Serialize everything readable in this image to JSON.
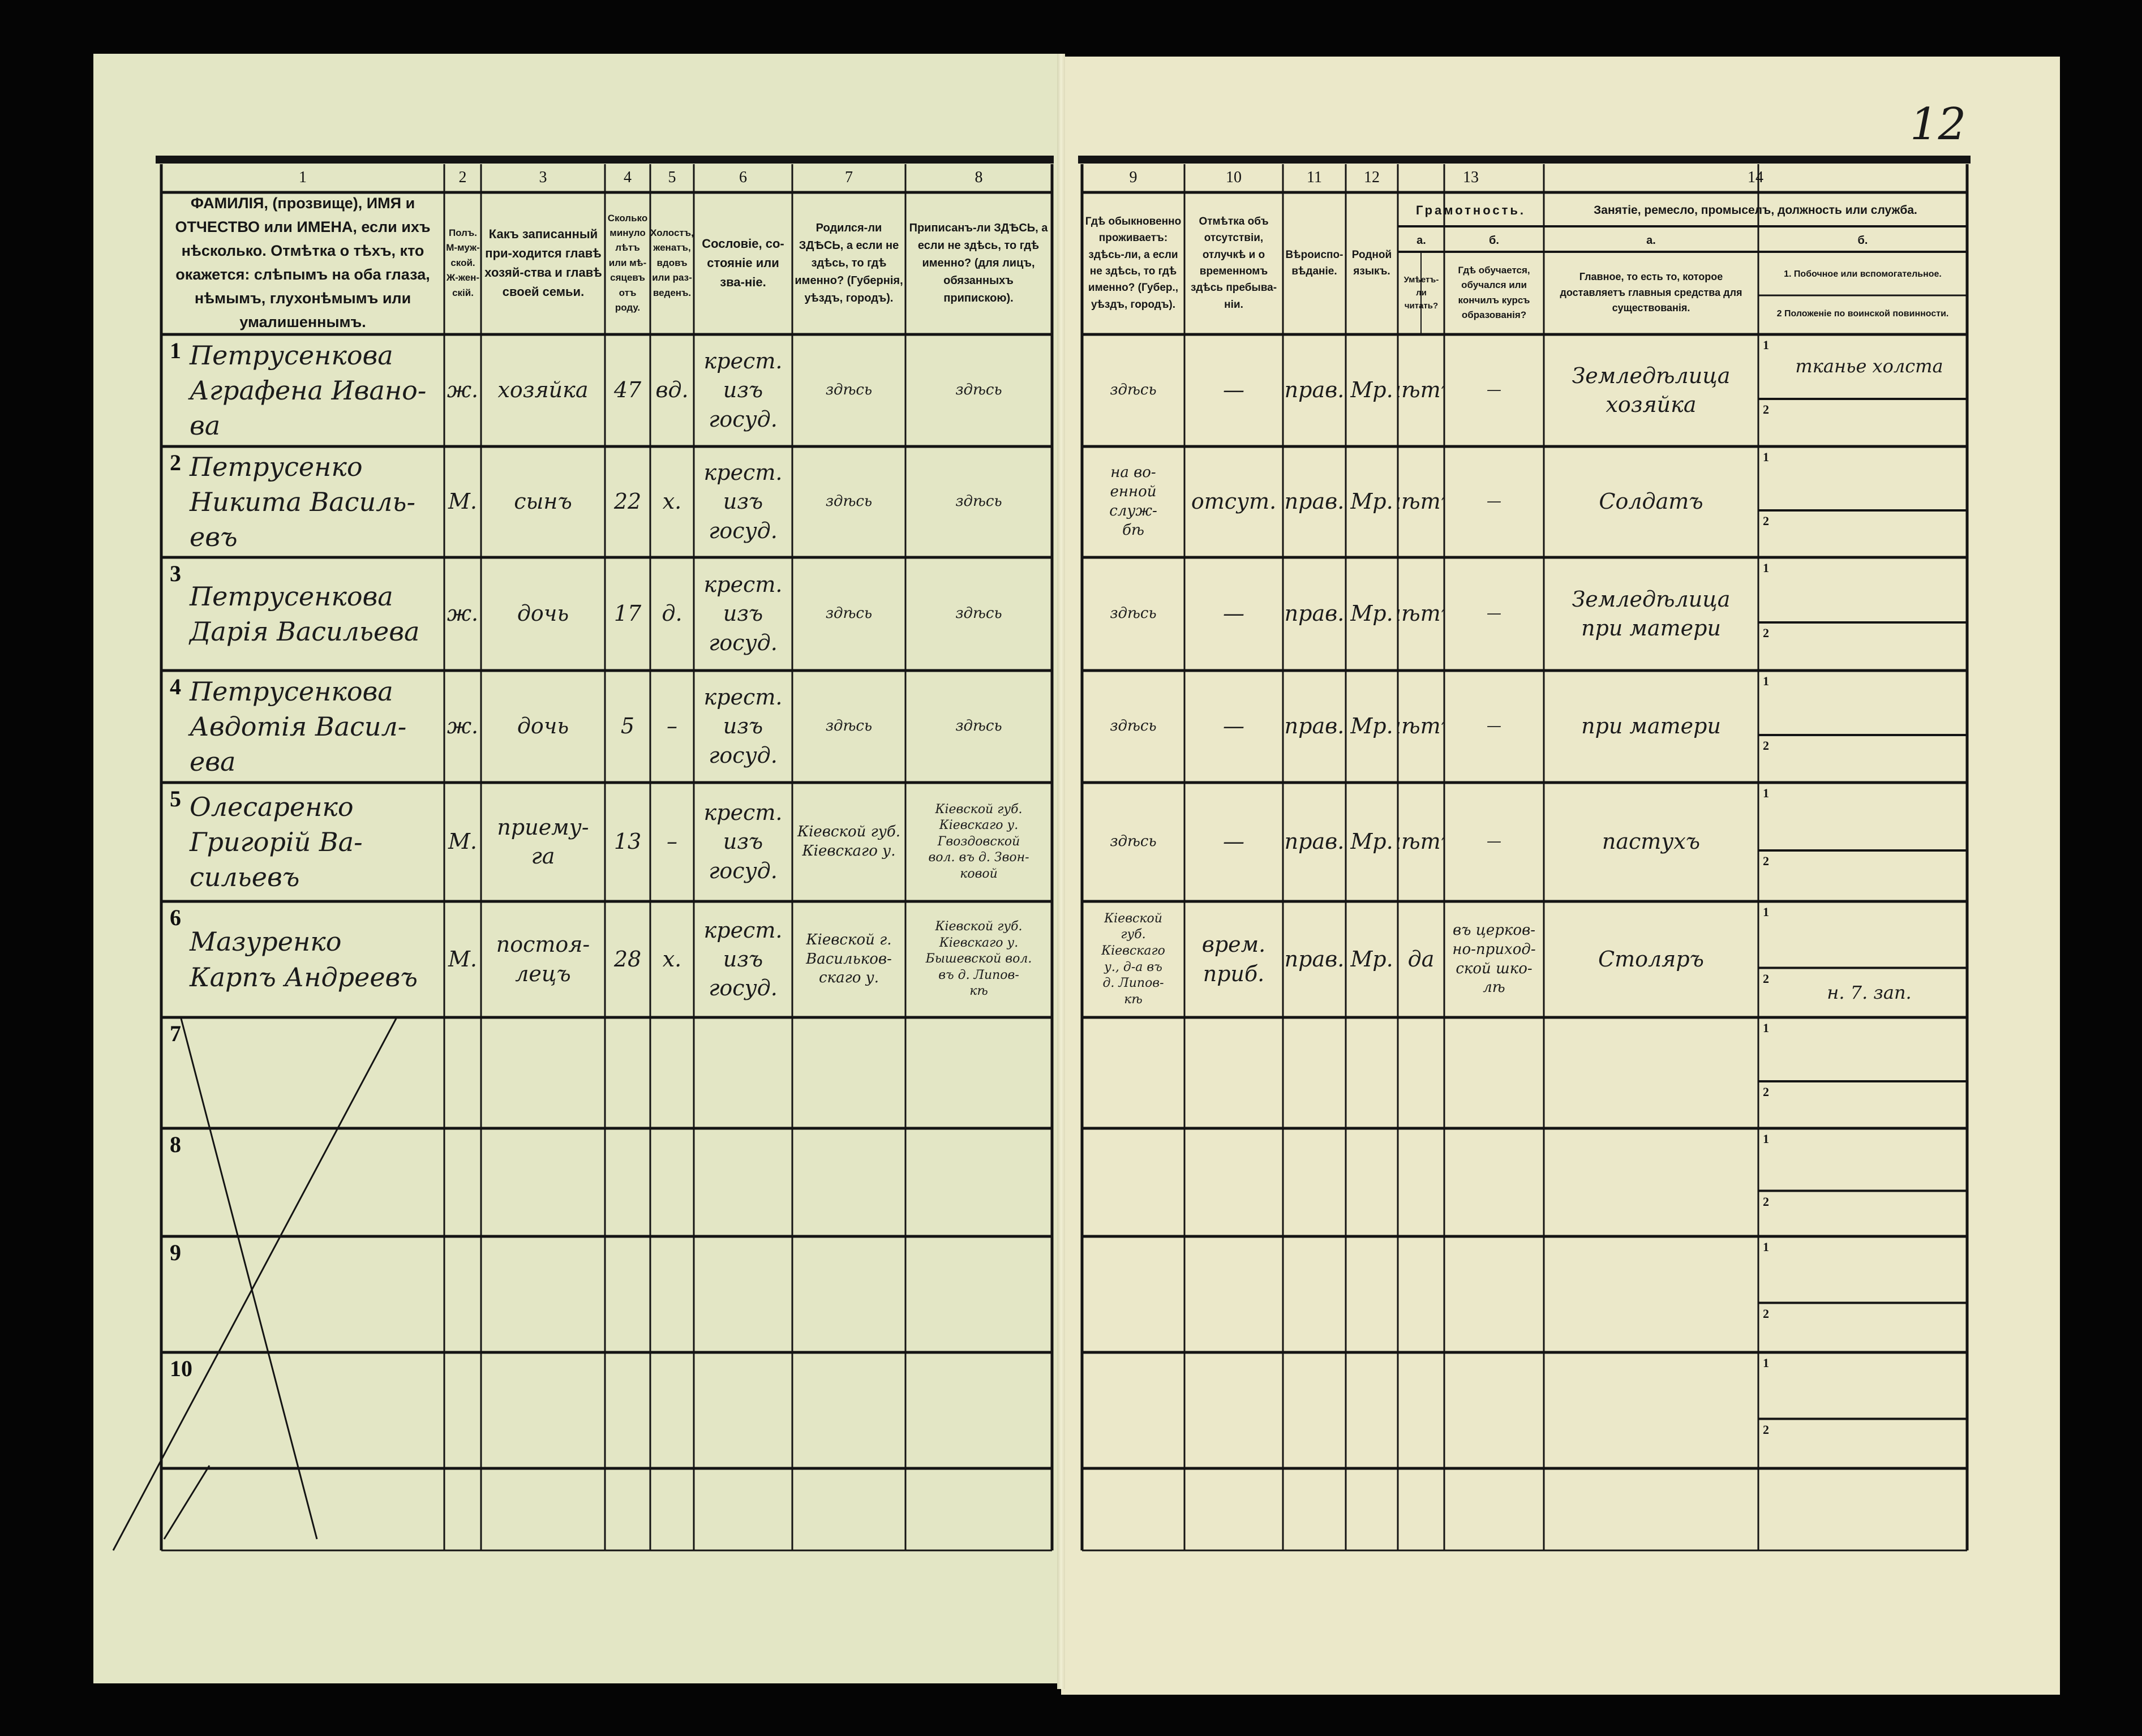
{
  "page_number": "12",
  "colors": {
    "paper_left": "#e3e6c5",
    "paper_right": "#ebe8c9",
    "ink": "#1b1b1b",
    "background": "#050505"
  },
  "header": {
    "col_numbers": [
      "1",
      "2",
      "3",
      "4",
      "5",
      "6",
      "7",
      "8",
      "9",
      "10",
      "11",
      "12",
      "13",
      "14"
    ],
    "c1": "ФАМИЛІЯ, (прозвище), ИМЯ и ОТЧЕСТВО или ИМЕНА, если ихъ нѣсколько. Отмѣтка о тѣхъ, кто окажется: слѣпымъ на оба глаза, нѣмымъ, глухонѣмымъ или умалишеннымъ.",
    "c2": "Полъ. М-муж-ской. Ж-жен-скій.",
    "c3": "Какъ записанный при-ходится главѣ хозяй-ства и главѣ своей семьи.",
    "c4": "Сколько минуло лѣтъ или мѣ-сяцевъ отъ роду.",
    "c5": "Холостъ, женатъ, вдовъ или раз-веденъ.",
    "c6": "Сословіе, со-стояніе или зва-ніе.",
    "c7": "Родился-ли ЗДѢСЬ, а если не здѣсь, то гдѣ именно? (Губернія, уѣздъ, городъ).",
    "c8": "Приписанъ-ли ЗДѢСЬ, а если не здѣсь, то гдѣ именно? (для лицъ, обязанныхъ припискою).",
    "c9": "Гдѣ обыкновенно проживаетъ: здѣсь-ли, а если не здѣсь, то гдѣ именно? (Губер., уѣздъ, городъ).",
    "c10": "Отмѣтка объ отсутствіи, отлучкѣ и о временномъ здѣсь пребыва-ніи.",
    "c11": "Вѣроиспо-вѣданіе.",
    "c12": "Родной языкъ.",
    "c13": "Грамотность.",
    "c13a_letter": "а.",
    "c13a": "Умѣетъ-ли читать?",
    "c13b_letter": "б.",
    "c13b": "Гдѣ обучается, обучался или кончилъ курсъ образованія?",
    "c14": "Занятіе, ремесло, промыселъ, должность или служба.",
    "c14a_letter": "а.",
    "c14a": "Главное, то есть то, которое доставляетъ главныя средства для существованія.",
    "c14b_letter": "б.",
    "c14b1": "1. Побочное или вспомогательное.",
    "c14b2": "2 Положеніе по воинской повинности."
  },
  "sub_labels": [
    "1",
    "2"
  ],
  "rows": [
    {
      "n": "1",
      "name": "Петрусенкова\nАграфена Ивано-\nва",
      "sex": "ж.",
      "relation": "хозяйка",
      "age": "47",
      "marital": "вд.",
      "estate": "крест.\nизъ\nгосуд.",
      "born": "здѣсь",
      "registered": "здѣсь",
      "residence": "здѣсь",
      "absence": "—",
      "religion": "прав.",
      "language": "Мр.",
      "literate": "нѣтъ",
      "school": "—",
      "occupation": "Земледѣлица\nхозяйка",
      "occupation_side": "тканье холста",
      "military": ""
    },
    {
      "n": "2",
      "name": "Петрусенко\nНикита Василь-\nевъ",
      "sex": "М.",
      "relation": "сынъ",
      "age": "22",
      "marital": "х.",
      "estate": "крест.\nизъ\nгосуд.",
      "born": "здѣсь",
      "registered": "здѣсь",
      "residence": "на во-\nенной\nслуж-\nбѣ",
      "absence": "отсут.",
      "religion": "прав.",
      "language": "Мр.",
      "literate": "нѣтъ",
      "school": "—",
      "occupation": "Солдатъ",
      "occupation_side": "",
      "military": ""
    },
    {
      "n": "3",
      "name": "Петрусенкова\nДарія Васильева",
      "sex": "ж.",
      "relation": "дочь",
      "age": "17",
      "marital": "д.",
      "estate": "крест.\nизъ\nгосуд.",
      "born": "здѣсь",
      "registered": "здѣсь",
      "residence": "здѣсь",
      "absence": "—",
      "religion": "прав.",
      "language": "Мр.",
      "literate": "нѣтъ",
      "school": "—",
      "occupation": "Земледѣлица\nпри матери",
      "occupation_side": "",
      "military": ""
    },
    {
      "n": "4",
      "name": "Петрусенкова\nАвдотія Васил-\nева",
      "sex": "ж.",
      "relation": "дочь",
      "age": "5",
      "marital": "–",
      "estate": "крест.\nизъ\nгосуд.",
      "born": "здѣсь",
      "registered": "здѣсь",
      "residence": "здѣсь",
      "absence": "—",
      "religion": "прав.",
      "language": "Мр.",
      "literate": "нѣтъ",
      "school": "—",
      "occupation": "при матери",
      "occupation_side": "",
      "military": ""
    },
    {
      "n": "5",
      "name": "Олесаренко\nГригорій Ва-\nсильевъ",
      "sex": "М.",
      "relation": "приему-\nга",
      "age": "13",
      "marital": "–",
      "estate": "крест.\nизъ\nгосуд.",
      "born": "Кіевской губ.\nКіевскаго у.",
      "registered": "Кіевской губ.\nКіевскаго у.\nГвоздовской\nвол. въ д. Звон-\nковой",
      "residence": "здѣсь",
      "absence": "—",
      "religion": "прав.",
      "language": "Мр.",
      "literate": "нѣтъ",
      "school": "—",
      "occupation": "пастухъ",
      "occupation_side": "",
      "military": ""
    },
    {
      "n": "6",
      "name": "Мазуренко\nКарпъ Андреевъ",
      "sex": "М.",
      "relation": "постоя-\nлецъ",
      "age": "28",
      "marital": "х.",
      "estate": "крест.\nизъ\nгосуд.",
      "born": "Кіевской г.\nВасильков-\nскаго у.",
      "registered": "Кіевской губ.\nКіевскаго у.\nБышевской вол.\nвъ д. Липов-\nкѣ",
      "residence": "Кіевской\nгуб.\nКіевскаго\nу., д-а въ\nд. Липов-\nкѣ",
      "absence": "врем.\nприб.",
      "religion": "прав.",
      "language": "Мр.",
      "literate": "да",
      "school": "въ церков-\nно-приход-\nской шко-\nлѣ",
      "occupation": "Столяръ",
      "occupation_side": "",
      "military": "н. 7. зап."
    },
    {
      "n": "7",
      "name": "",
      "sex": "",
      "relation": "",
      "age": "",
      "marital": "",
      "estate": "",
      "born": "",
      "registered": "",
      "residence": "",
      "absence": "",
      "religion": "",
      "language": "",
      "literate": "",
      "school": "",
      "occupation": "",
      "occupation_side": "",
      "military": ""
    },
    {
      "n": "8",
      "name": "",
      "sex": "",
      "relation": "",
      "age": "",
      "marital": "",
      "estate": "",
      "born": "",
      "registered": "",
      "residence": "",
      "absence": "",
      "religion": "",
      "language": "",
      "literate": "",
      "school": "",
      "occupation": "",
      "occupation_side": "",
      "military": ""
    },
    {
      "n": "9",
      "name": "",
      "sex": "",
      "relation": "",
      "age": "",
      "marital": "",
      "estate": "",
      "born": "",
      "registered": "",
      "residence": "",
      "absence": "",
      "religion": "",
      "language": "",
      "literate": "",
      "school": "",
      "occupation": "",
      "occupation_side": "",
      "military": ""
    },
    {
      "n": "10",
      "name": "",
      "sex": "",
      "relation": "",
      "age": "",
      "marital": "",
      "estate": "",
      "born": "",
      "registered": "",
      "residence": "",
      "absence": "",
      "religion": "",
      "language": "",
      "literate": "",
      "school": "",
      "occupation": "",
      "occupation_side": "",
      "military": ""
    }
  ]
}
